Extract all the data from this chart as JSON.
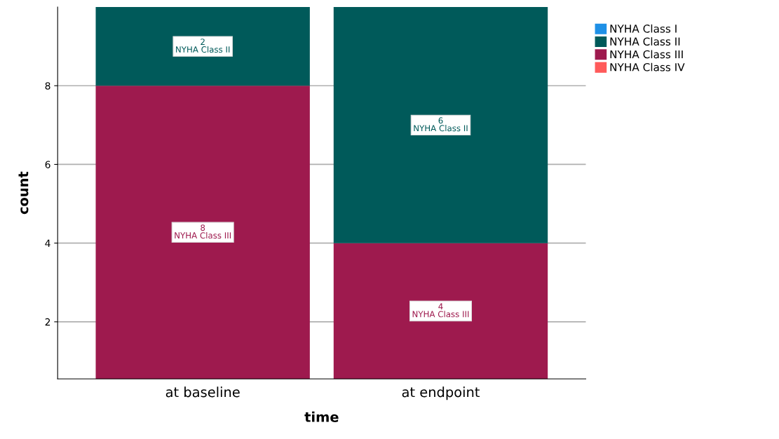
{
  "chart_data": {
    "type": "bar",
    "stacked": true,
    "xlabel": "time",
    "ylabel": "count",
    "categories": [
      "at baseline",
      "at endpoint"
    ],
    "series": [
      {
        "name": "NYHA Class IV",
        "color": "#ff5a5a",
        "values": [
          null,
          null
        ]
      },
      {
        "name": "NYHA Class III",
        "color": "#9e1a4e",
        "values": [
          8,
          4
        ]
      },
      {
        "name": "NYHA Class II",
        "color": "#005a5a",
        "values": [
          2,
          6
        ]
      },
      {
        "name": "NYHA Class I",
        "color": "#1e90e6",
        "values": [
          null,
          null
        ]
      }
    ],
    "ylim": [
      0.55,
      10
    ],
    "yticks": [
      2,
      4,
      6,
      8
    ],
    "grid": "y",
    "legend": "top right",
    "data_labels": true
  }
}
